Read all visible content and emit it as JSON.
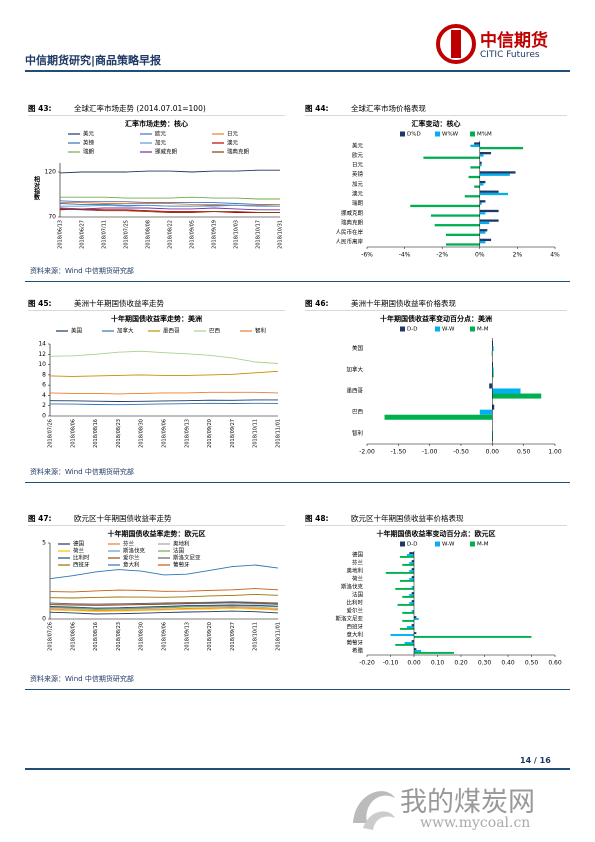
{
  "header": {
    "title": "中信期货研究|商品策略早报",
    "logo_cn": "中信期货",
    "logo_en": "CITIC Futures"
  },
  "figures": [
    {
      "label": "图 43:",
      "title": "全球汇率市场走势 (2014.07.01=100)"
    },
    {
      "label": "图 44:",
      "title": "全球汇率市场价格表现"
    },
    {
      "label": "图 45:",
      "title": "美洲十年期国债收益率走势"
    },
    {
      "label": "图 46:",
      "title": "美洲十年期国债收益率价格表现"
    },
    {
      "label": "图 47:",
      "title": "欧元区十年期国债收益率走势"
    },
    {
      "label": "图 48:",
      "title": "欧元区十年期国债收益率价格表现"
    }
  ],
  "source": "资料来源：Wind  中信期货研究部",
  "footer": {
    "page": "14 / 16",
    "watermark": "我的煤炭网",
    "url": "www.mycoal.cn"
  },
  "chart_data": [
    {
      "type": "line",
      "title": "汇率市场走势：核心",
      "ylabel": "相对指数",
      "ylim": [
        70,
        130
      ],
      "yticks": [
        70,
        120
      ],
      "categories": [
        "2018/06/13",
        "2018/06/27",
        "2018/07/11",
        "2018/07/25",
        "2018/08/08",
        "2018/08/22",
        "2018/09/05",
        "2018/09/19",
        "2018/10/03",
        "2018/10/17",
        "2018/10/31"
      ],
      "series": [
        {
          "name": "美元",
          "color": "#1f3864",
          "values": [
            119,
            120,
            120,
            120,
            121,
            121,
            120,
            121,
            121,
            122,
            122
          ]
        },
        {
          "name": "欧元",
          "color": "#4472c4",
          "values": [
            88,
            87,
            87,
            87,
            86,
            86,
            86,
            86,
            85,
            84,
            84
          ]
        },
        {
          "name": "日元",
          "color": "#ed7d31",
          "values": [
            86,
            86,
            85,
            85,
            85,
            85,
            84,
            84,
            83,
            83,
            84
          ]
        },
        {
          "name": "英镑",
          "color": "#2e75b6",
          "values": [
            85,
            84,
            84,
            83,
            83,
            82,
            82,
            83,
            83,
            82,
            82
          ]
        },
        {
          "name": "加元",
          "color": "#5b9bd5",
          "values": [
            82,
            82,
            83,
            82,
            83,
            82,
            82,
            82,
            83,
            82,
            82
          ]
        },
        {
          "name": "澳元",
          "color": "#c00000",
          "values": [
            78,
            79,
            78,
            78,
            77,
            76,
            76,
            76,
            75,
            75,
            75
          ]
        },
        {
          "name": "瑞朗",
          "color": "#70ad47",
          "values": [
            92,
            92,
            92,
            91,
            91,
            91,
            92,
            91,
            91,
            90,
            90
          ]
        },
        {
          "name": "挪威克朗",
          "color": "#7030a0",
          "values": [
            80,
            79,
            80,
            80,
            80,
            79,
            79,
            80,
            79,
            78,
            78
          ]
        },
        {
          "name": "瑞典克朗",
          "color": "#843c0c",
          "values": [
            79,
            78,
            77,
            77,
            76,
            75,
            75,
            76,
            76,
            75,
            75
          ]
        }
      ]
    },
    {
      "type": "hbar",
      "title": "汇率变动：核心",
      "xlim": [
        -6,
        4
      ],
      "xticks": [
        {
          "value": -6,
          "label": "-6%"
        },
        {
          "value": -4,
          "label": "-4%"
        },
        {
          "value": -2,
          "label": "-2%"
        },
        {
          "value": 0,
          "label": "0%"
        },
        {
          "value": 2,
          "label": "2%"
        },
        {
          "value": 4,
          "label": "4%"
        }
      ],
      "categories": [
        "美元",
        "欧元",
        "日元",
        "英镑",
        "加元",
        "澳元",
        "瑞朗",
        "挪威克朗",
        "瑞典克朗",
        "人民币在岸",
        "人民币离岸"
      ],
      "series": [
        {
          "name": "D%D",
          "color": "#1f3864",
          "values": [
            -0.3,
            0.6,
            0.1,
            1.9,
            0.3,
            1.0,
            0.3,
            1.0,
            1.0,
            0.4,
            0.6
          ]
        },
        {
          "name": "W%W",
          "color": "#00b0f0",
          "values": [
            -0.5,
            0.2,
            0.1,
            1.6,
            0.2,
            1.5,
            0.1,
            0.3,
            0.5,
            0.3,
            0.3
          ]
        },
        {
          "name": "M%M",
          "color": "#00b050",
          "values": [
            2.3,
            -3.0,
            -0.5,
            -0.6,
            -0.3,
            -0.8,
            -3.7,
            -2.6,
            -2.4,
            -1.8,
            -1.8
          ]
        }
      ]
    },
    {
      "type": "line",
      "title": "十年期国债收益率走势：美洲",
      "ylim": [
        0,
        14
      ],
      "yticks": [
        0,
        2,
        4,
        6,
        8,
        10,
        12,
        14
      ],
      "categories": [
        "2018/07/26",
        "2018/08/06",
        "2018/08/16",
        "2018/08/23",
        "2018/08/30",
        "2018/09/06",
        "2018/09/13",
        "2018/09/20",
        "2018/09/27",
        "2018/10/11",
        "2018/11/01"
      ],
      "series": [
        {
          "name": "美国",
          "color": "#1f3864",
          "values": [
            2.98,
            2.95,
            2.87,
            2.82,
            2.86,
            2.94,
            2.97,
            3.07,
            3.06,
            3.14,
            3.14
          ]
        },
        {
          "name": "加拿大",
          "color": "#2e75b6",
          "values": [
            2.35,
            2.32,
            2.23,
            2.2,
            2.27,
            2.35,
            2.4,
            2.46,
            2.43,
            2.47,
            2.45
          ]
        },
        {
          "name": "墨西哥",
          "color": "#bf9000",
          "values": [
            7.8,
            7.7,
            7.8,
            7.9,
            8.0,
            7.9,
            7.9,
            8.0,
            8.1,
            8.4,
            8.7
          ]
        },
        {
          "name": "巴西",
          "color": "#a9d18e",
          "values": [
            11.6,
            11.7,
            12.0,
            12.4,
            12.6,
            12.3,
            12.1,
            11.8,
            11.3,
            10.5,
            10.2
          ]
        },
        {
          "name": "智利",
          "color": "#ed7d31",
          "values": [
            4.5,
            4.4,
            4.4,
            4.3,
            4.4,
            4.5,
            4.5,
            4.6,
            4.6,
            4.6,
            4.5
          ]
        }
      ]
    },
    {
      "type": "hbar",
      "title": "十年期国债收益率变动百分点：美洲",
      "xlim": [
        -2,
        1
      ],
      "xticks": [
        {
          "value": -2,
          "label": "-2.00"
        },
        {
          "value": -1.5,
          "label": "-1.50"
        },
        {
          "value": -1,
          "label": "-1.00"
        },
        {
          "value": -0.5,
          "label": "-0.50"
        },
        {
          "value": 0,
          "label": "0.00"
        },
        {
          "value": 0.5,
          "label": "0.50"
        },
        {
          "value": 1,
          "label": "1.00"
        }
      ],
      "categories": [
        "美国",
        "加拿大",
        "墨西哥",
        "巴西",
        "智利"
      ],
      "series": [
        {
          "name": "D-D",
          "color": "#1f3864",
          "values": [
            0.01,
            0.01,
            -0.05,
            0.03,
            0.0
          ]
        },
        {
          "name": "W-W",
          "color": "#00b0f0",
          "values": [
            0.02,
            0.02,
            0.45,
            -0.2,
            0.01
          ]
        },
        {
          "name": "M-M",
          "color": "#00b050",
          "values": [
            -0.01,
            0.02,
            0.78,
            -1.72,
            0.01
          ]
        }
      ]
    },
    {
      "type": "line",
      "title": "十年期国债收益率走势：欧元区",
      "ylim": [
        0,
        5
      ],
      "yticks": [
        0,
        5
      ],
      "categories": [
        "2018/07/26",
        "2018/08/06",
        "2018/08/16",
        "2018/08/23",
        "2018/08/30",
        "2018/09/06",
        "2018/09/13",
        "2018/09/20",
        "2018/09/27",
        "2018/10/11",
        "2018/11/01"
      ],
      "series": [
        {
          "name": "德国",
          "color": "#1f3864",
          "values": [
            0.45,
            0.4,
            0.33,
            0.35,
            0.38,
            0.42,
            0.46,
            0.48,
            0.52,
            0.48,
            0.4
          ]
        },
        {
          "name": "芬兰",
          "color": "#ed7d31",
          "values": [
            0.65,
            0.6,
            0.55,
            0.57,
            0.6,
            0.64,
            0.69,
            0.72,
            0.75,
            0.71,
            0.62
          ]
        },
        {
          "name": "奥地利",
          "color": "#a5a5a5",
          "values": [
            0.73,
            0.68,
            0.62,
            0.64,
            0.68,
            0.72,
            0.78,
            0.8,
            0.82,
            0.78,
            0.7
          ]
        },
        {
          "name": "荷兰",
          "color": "#ffc000",
          "values": [
            0.6,
            0.55,
            0.5,
            0.52,
            0.55,
            0.6,
            0.64,
            0.66,
            0.7,
            0.66,
            0.58
          ]
        },
        {
          "name": "斯洛伐克",
          "color": "#5b9bd5",
          "values": [
            0.95,
            0.92,
            0.9,
            0.92,
            0.95,
            0.96,
            1.0,
            1.02,
            1.05,
            1.0,
            0.95
          ]
        },
        {
          "name": "法国",
          "color": "#70ad47",
          "values": [
            0.78,
            0.73,
            0.66,
            0.68,
            0.72,
            0.76,
            0.82,
            0.85,
            0.88,
            0.86,
            0.8
          ]
        },
        {
          "name": "比利时",
          "color": "#264478",
          "values": [
            0.82,
            0.78,
            0.72,
            0.74,
            0.78,
            0.82,
            0.88,
            0.9,
            0.93,
            0.9,
            0.84
          ]
        },
        {
          "name": "爱尔兰",
          "color": "#9e480e",
          "values": [
            0.95,
            0.92,
            0.9,
            0.92,
            0.95,
            0.98,
            1.02,
            1.06,
            1.1,
            1.05,
            0.98
          ]
        },
        {
          "name": "斯洛文尼亚",
          "color": "#636363",
          "values": [
            1.05,
            1.0,
            0.98,
            1.0,
            1.02,
            1.05,
            1.08,
            1.1,
            1.14,
            1.1,
            1.05
          ]
        },
        {
          "name": "西班牙",
          "color": "#997300",
          "values": [
            1.4,
            1.38,
            1.42,
            1.45,
            1.44,
            1.43,
            1.46,
            1.52,
            1.55,
            1.62,
            1.56
          ]
        },
        {
          "name": "意大利",
          "color": "#2e75b6",
          "values": [
            2.65,
            2.85,
            3.1,
            3.25,
            3.15,
            2.9,
            2.95,
            3.2,
            3.45,
            3.55,
            3.35
          ]
        },
        {
          "name": "葡萄牙",
          "color": "#c55a11",
          "values": [
            1.8,
            1.78,
            1.85,
            1.9,
            1.88,
            1.82,
            1.83,
            1.88,
            1.92,
            2.0,
            1.92
          ]
        }
      ]
    },
    {
      "type": "hbar",
      "title": "十年期国债收益率变动百分点：欧元区",
      "xlim": [
        -0.2,
        0.6
      ],
      "xticks": [
        {
          "value": -0.2,
          "label": "-0.20"
        },
        {
          "value": -0.1,
          "label": "-0.10"
        },
        {
          "value": 0,
          "label": "0.00"
        },
        {
          "value": 0.1,
          "label": "0.10"
        },
        {
          "value": 0.2,
          "label": "0.20"
        },
        {
          "value": 0.3,
          "label": "0.30"
        },
        {
          "value": 0.4,
          "label": "0.40"
        },
        {
          "value": 0.5,
          "label": "0.50"
        },
        {
          "value": 0.6,
          "label": "0.60"
        }
      ],
      "categories": [
        "德国",
        "芬兰",
        "奥地利",
        "荷兰",
        "斯洛伐克",
        "法国",
        "比利时",
        "爱尔兰",
        "斯洛文尼亚",
        "西班牙",
        "意大利",
        "葡萄牙",
        "希腊"
      ],
      "series": [
        {
          "name": "D-D",
          "color": "#1f3864",
          "values": [
            -0.02,
            -0.01,
            -0.01,
            -0.01,
            0.0,
            -0.01,
            -0.01,
            0.0,
            0.01,
            -0.01,
            0.01,
            -0.01,
            0.01
          ]
        },
        {
          "name": "W-W",
          "color": "#00b0f0",
          "values": [
            -0.03,
            -0.02,
            -0.02,
            -0.02,
            -0.01,
            -0.02,
            -0.02,
            -0.01,
            0.02,
            -0.03,
            -0.1,
            -0.04,
            0.03
          ]
        },
        {
          "name": "M-M",
          "color": "#00b050",
          "values": [
            -0.06,
            -0.05,
            -0.12,
            -0.06,
            -0.08,
            -0.05,
            -0.07,
            -0.05,
            -0.05,
            -0.06,
            0.5,
            -0.08,
            0.17
          ]
        }
      ]
    }
  ]
}
